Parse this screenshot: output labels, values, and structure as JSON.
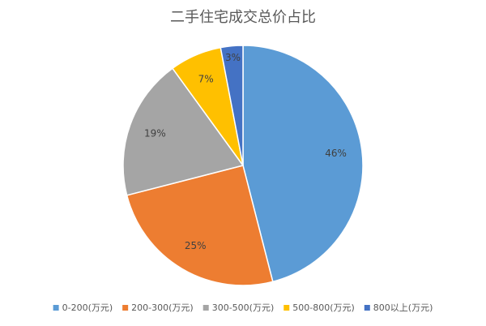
{
  "chart_data": {
    "type": "pie",
    "title": "二手住宅成交总价占比",
    "categories": [
      "0-200(万元)",
      "200-300(万元)",
      "300-500(万元)",
      "500-800(万元)",
      "800以上(万元)"
    ],
    "values": [
      46,
      25,
      19,
      7,
      3
    ],
    "value_labels": [
      "46%",
      "25%",
      "19%",
      "7%",
      "3%"
    ],
    "colors": [
      "#5b9bd5",
      "#ed7d31",
      "#a5a5a5",
      "#ffc000",
      "#4472c4"
    ],
    "legend": "bottom"
  }
}
